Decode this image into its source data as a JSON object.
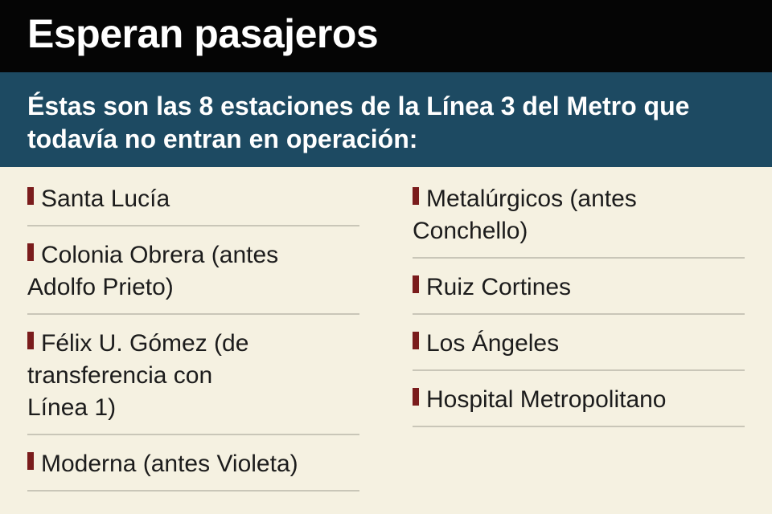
{
  "header": {
    "title": "Esperan pasajeros",
    "subtitle": "Éstas son las 8 estaciones de la Línea 3 del Metro que todavía no entran en operación:"
  },
  "colors": {
    "title_bar": "#050505",
    "subtitle_bar": "#1d4a62",
    "background": "#f5f1e1",
    "marker": "#7a1c1c",
    "divider": "#c9c6b8"
  },
  "stations_left": [
    {
      "label": "Santa Lucía"
    },
    {
      "label": "Colonia Obrera (antes Adolfo Prieto)"
    },
    {
      "label": "Félix U. Gómez (de transferencia con Línea 1)"
    },
    {
      "label": "Moderna (antes Violeta)"
    }
  ],
  "stations_right": [
    {
      "label": "Metalúrgicos (antes Conchello)"
    },
    {
      "label": "Ruiz Cortines"
    },
    {
      "label": "Los Ángeles"
    },
    {
      "label": "Hospital Metropolitano"
    }
  ]
}
